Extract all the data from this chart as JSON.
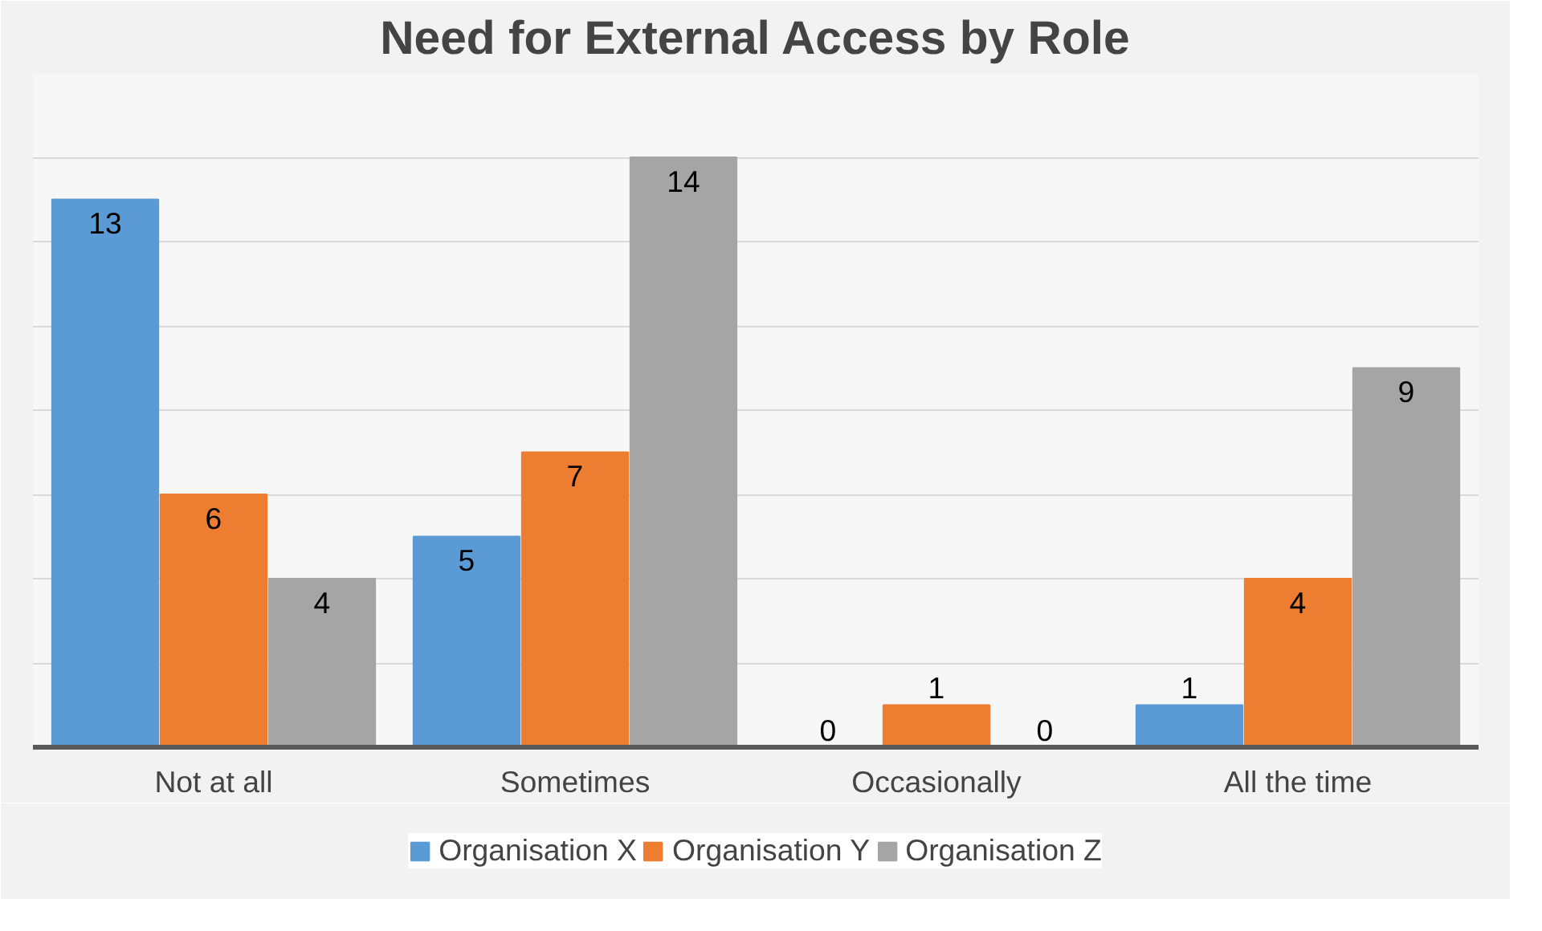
{
  "chart_data": {
    "type": "bar",
    "title": "Need for External Access by Role",
    "categories": [
      "Not at all",
      "Sometimes",
      "Occasionally",
      "All the time"
    ],
    "series": [
      {
        "name": "Organisation X",
        "color": "#5b9bd5",
        "values": [
          13,
          5,
          0,
          1
        ]
      },
      {
        "name": "Organisation Y",
        "color": "#ed7d31",
        "values": [
          6,
          7,
          1,
          4
        ]
      },
      {
        "name": "Organisation Z",
        "color": "#a5a5a5",
        "values": [
          4,
          14,
          0,
          9
        ]
      }
    ],
    "ylim": [
      0,
      16
    ],
    "yticks": [
      {
        "value": 0,
        "label": null
      },
      {
        "value": 2,
        "label": null
      },
      {
        "value": 4,
        "label": null
      },
      {
        "value": 6,
        "label": null
      },
      {
        "value": 8,
        "label": null
      },
      {
        "value": 10,
        "label": null
      },
      {
        "value": 12,
        "label": null
      },
      {
        "value": 14,
        "label": null
      },
      {
        "value": 16,
        "label": null
      }
    ],
    "grid": "y",
    "legend": "bottom",
    "data_labels": true,
    "tick_labels": "x"
  }
}
